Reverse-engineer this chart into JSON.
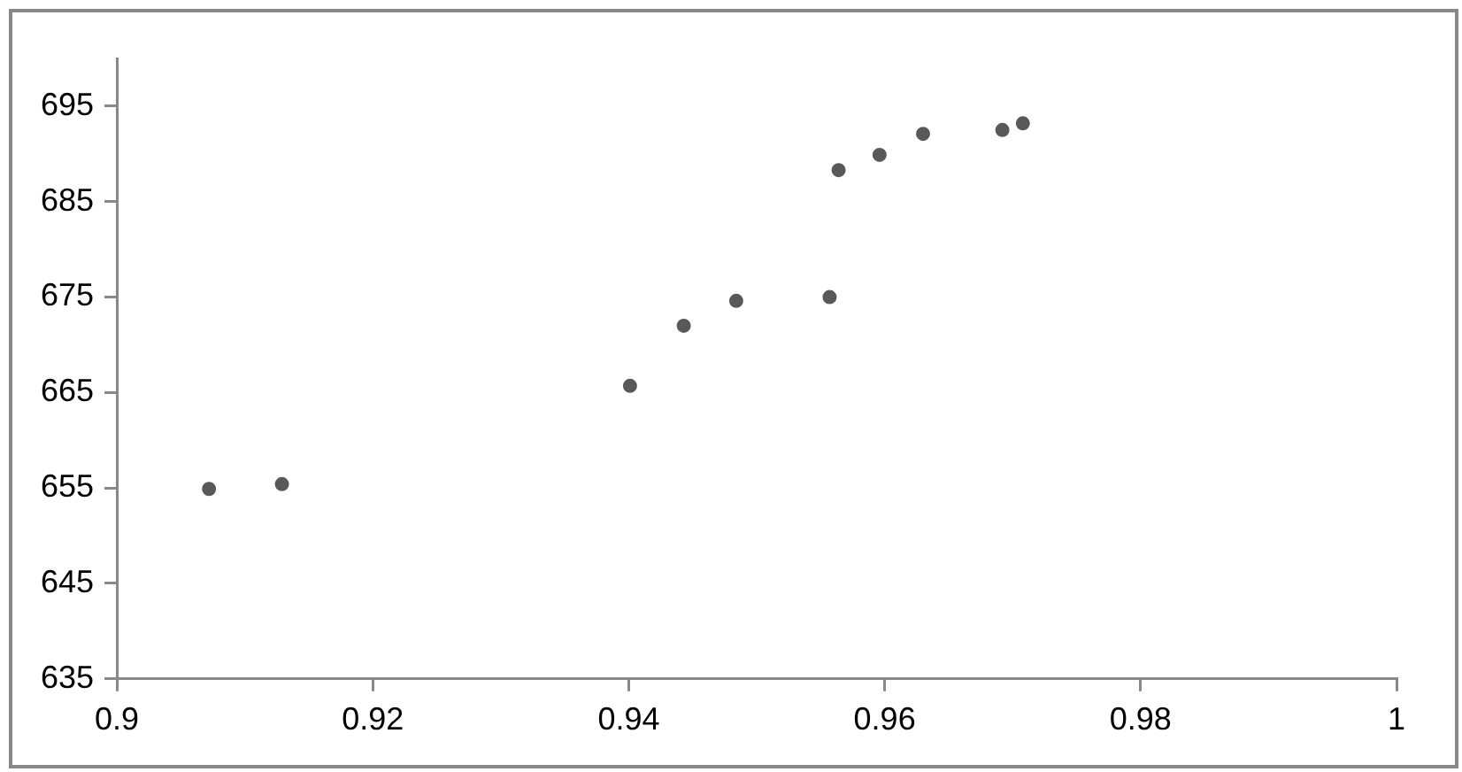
{
  "chart_data": {
    "type": "scatter",
    "x": [
      0.9072,
      0.9129,
      0.9401,
      0.9443,
      0.9484,
      0.9557,
      0.9564,
      0.9596,
      0.963,
      0.9692,
      0.9708
    ],
    "series": [
      {
        "color": "#595959",
        "values": [
          654.9,
          655.4,
          665.7,
          672.0,
          674.6,
          675.0,
          688.3,
          689.9,
          692.1,
          692.5,
          693.2
        ]
      }
    ],
    "xlim": [
      0.9,
      1
    ],
    "xticks": [
      0.9,
      0.92,
      0.94,
      0.96,
      0.98,
      1
    ],
    "ylim": [
      635,
      700
    ],
    "yticks": [
      635,
      645,
      655,
      665,
      675,
      685,
      695
    ],
    "marker": "circle",
    "grid": false,
    "legend": false
  }
}
